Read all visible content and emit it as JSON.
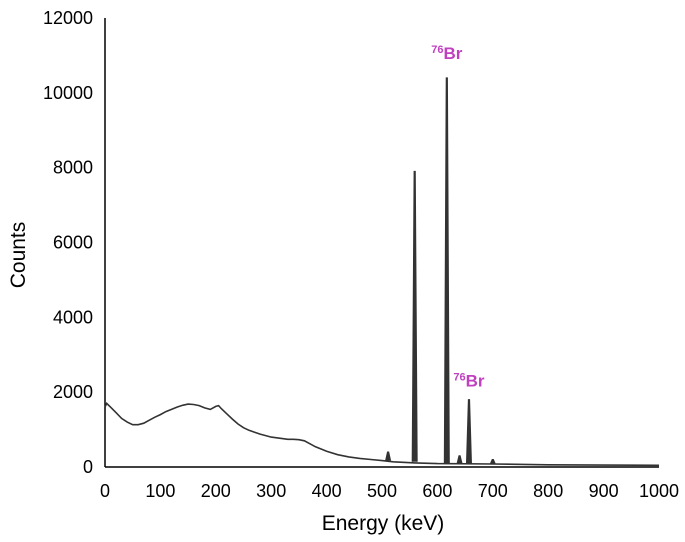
{
  "chart_data": {
    "type": "line",
    "title": "",
    "xlabel": "Energy (keV)",
    "ylabel": "Counts",
    "xlim": [
      0,
      1000
    ],
    "ylim": [
      0,
      12000
    ],
    "x_ticks": [
      0,
      100,
      200,
      300,
      400,
      500,
      600,
      700,
      800,
      900,
      1000
    ],
    "x_tick_labels": [
      "0",
      "100",
      "200",
      "300",
      "400",
      "500",
      "600",
      "700",
      "800",
      "900",
      "1000"
    ],
    "y_ticks": [
      0,
      2000,
      4000,
      6000,
      8000,
      10000,
      12000
    ],
    "y_tick_labels": [
      "0",
      "2000",
      "4000",
      "6000",
      "8000",
      "10000",
      "12000"
    ],
    "grid": false,
    "legend": "none",
    "line_color": "#333333",
    "label_color": "#c040c0",
    "continuum": {
      "x": [
        0,
        3,
        10,
        20,
        30,
        40,
        50,
        60,
        70,
        80,
        90,
        100,
        110,
        120,
        130,
        140,
        150,
        160,
        170,
        180,
        190,
        200,
        205,
        210,
        220,
        230,
        240,
        250,
        260,
        270,
        280,
        290,
        300,
        310,
        320,
        330,
        340,
        350,
        360,
        370,
        380,
        390,
        400,
        420,
        440,
        460,
        480,
        500,
        520,
        560,
        600,
        700,
        800,
        900,
        1000
      ],
      "y": [
        1600,
        1700,
        1600,
        1450,
        1300,
        1200,
        1130,
        1130,
        1170,
        1250,
        1330,
        1400,
        1480,
        1540,
        1600,
        1650,
        1680,
        1670,
        1640,
        1580,
        1540,
        1620,
        1640,
        1560,
        1420,
        1280,
        1150,
        1050,
        980,
        930,
        880,
        840,
        800,
        780,
        760,
        740,
        740,
        730,
        700,
        620,
        540,
        480,
        420,
        330,
        270,
        230,
        200,
        170,
        140,
        110,
        90,
        80,
        60,
        50,
        45
      ]
    },
    "peaks": [
      {
        "x": 511,
        "y": 400
      },
      {
        "x": 559,
        "y": 7900
      },
      {
        "x": 617,
        "y": 10400
      },
      {
        "x": 640,
        "y": 300
      },
      {
        "x": 657,
        "y": 1800
      },
      {
        "x": 700,
        "y": 200
      }
    ],
    "annotations": [
      {
        "mass_number": "76",
        "element": "Br",
        "x": 617,
        "y": 10900
      },
      {
        "mass_number": "76",
        "element": "Br",
        "x": 657,
        "y": 2150
      }
    ]
  }
}
